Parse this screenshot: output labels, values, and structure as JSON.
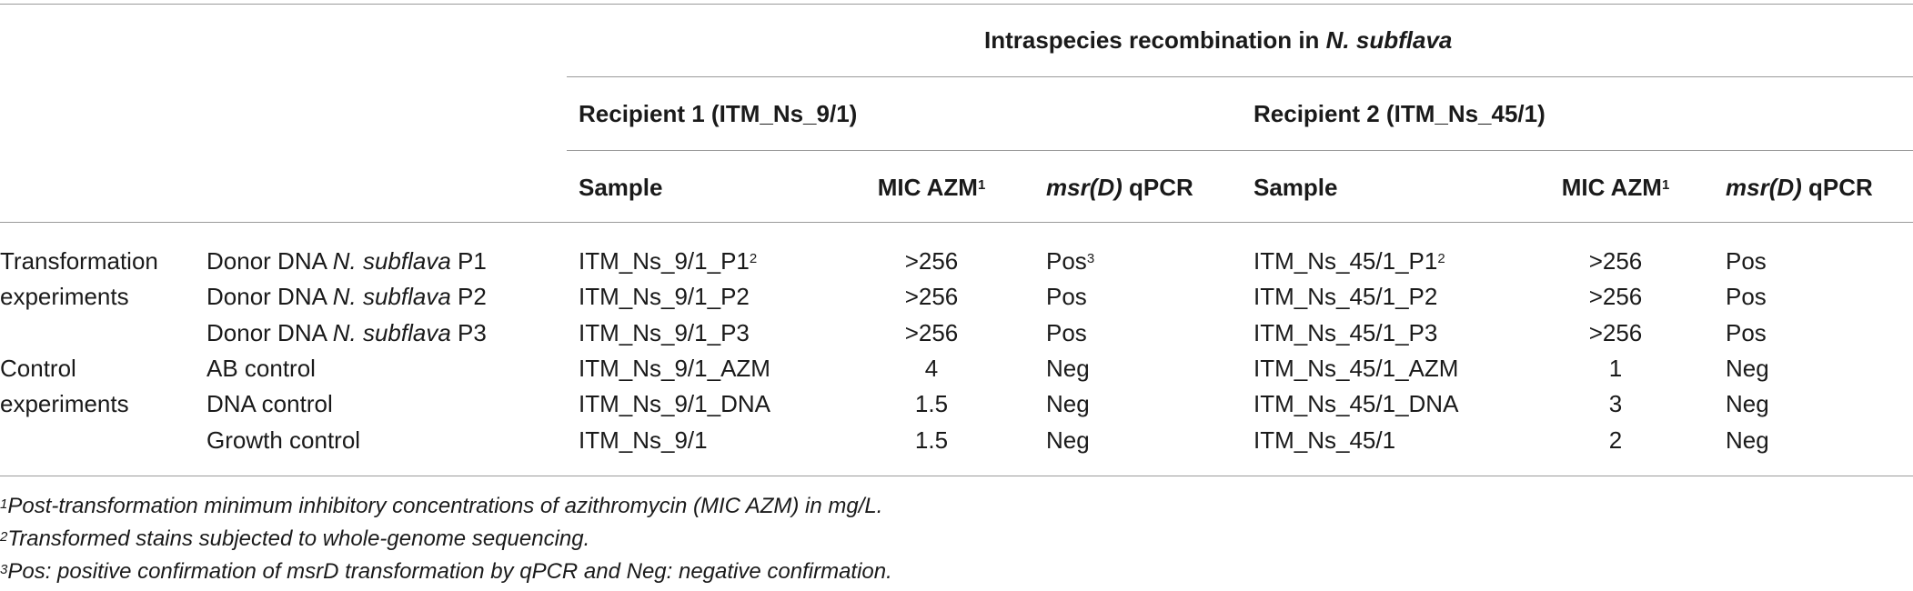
{
  "header": {
    "group_title_prefix": "Intraspecies recombination in ",
    "group_title_species": "N. subflava",
    "recipient1": "Recipient 1 (ITM_Ns_9/1)",
    "recipient2": "Recipient 2 (ITM_Ns_45/1)",
    "col_sample": "Sample",
    "col_mic": "MIC AZM",
    "col_mic_sup": "1",
    "col_msr_gene": "msr(D)",
    "col_msr_suffix": " qPCR"
  },
  "rows": [
    {
      "group": "Transformation",
      "cond_prefix": "Donor DNA ",
      "cond_species": "N. subflava",
      "cond_suffix": " P1",
      "s1": "ITM_Ns_9/1_P1",
      "s1_sup": "2",
      "m1": ">256",
      "q1": "Pos",
      "q1_sup": "3",
      "s2": "ITM_Ns_45/1_P1",
      "s2_sup": "2",
      "m2": ">256",
      "q2": "Pos"
    },
    {
      "group": "experiments",
      "cond_prefix": "Donor DNA ",
      "cond_species": "N. subflava",
      "cond_suffix": " P2",
      "s1": "ITM_Ns_9/1_P2",
      "m1": ">256",
      "q1": "Pos",
      "s2": "ITM_Ns_45/1_P2",
      "m2": ">256",
      "q2": "Pos"
    },
    {
      "group": "",
      "cond_prefix": "Donor DNA ",
      "cond_species": "N. subflava",
      "cond_suffix": " P3",
      "s1": "ITM_Ns_9/1_P3",
      "m1": ">256",
      "q1": "Pos",
      "s2": "ITM_Ns_45/1_P3",
      "m2": ">256",
      "q2": "Pos"
    },
    {
      "group": "Control",
      "cond": "AB control",
      "s1": "ITM_Ns_9/1_AZM",
      "m1": "4",
      "q1": "Neg",
      "s2": "ITM_Ns_45/1_AZM",
      "m2": "1",
      "q2": "Neg"
    },
    {
      "group": "experiments",
      "cond": "DNA control",
      "s1": "ITM_Ns_9/1_DNA",
      "m1": "1.5",
      "q1": "Neg",
      "s2": "ITM_Ns_45/1_DNA",
      "m2": "3",
      "q2": "Neg"
    },
    {
      "group": "",
      "cond": "Growth control",
      "s1": "ITM_Ns_9/1",
      "m1": "1.5",
      "q1": "Neg",
      "s2": "ITM_Ns_45/1",
      "m2": "2",
      "q2": "Neg"
    }
  ],
  "footnotes": [
    {
      "num": "1",
      "text": "Post-transformation minimum inhibitory concentrations of azithromycin (MIC AZM) in mg/L."
    },
    {
      "num": "2",
      "text": "Transformed stains subjected to whole-genome sequencing."
    },
    {
      "num": "3",
      "text": "Pos: positive confirmation of msrD transformation by qPCR and Neg: negative confirmation."
    }
  ]
}
